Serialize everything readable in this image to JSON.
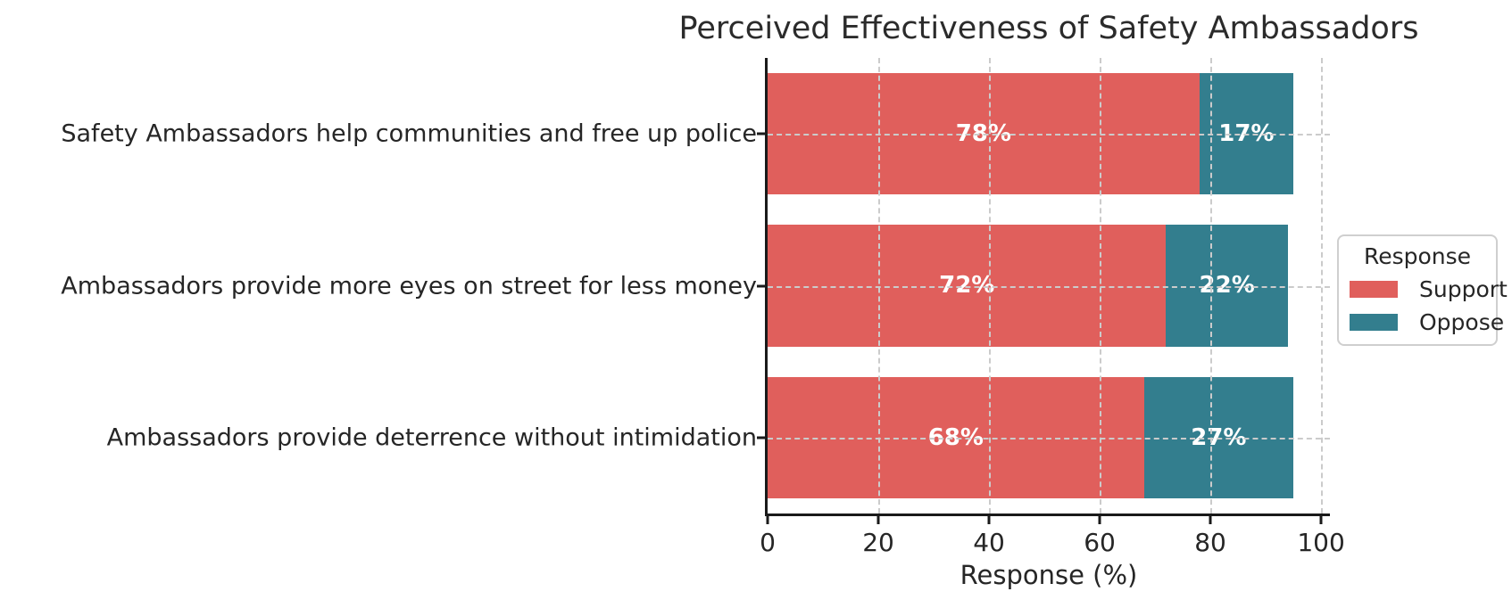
{
  "title": "Perceived Effectiveness of Safety Ambassadors",
  "xlabel": "Response (%)",
  "legend": {
    "title": "Response",
    "position": "center-right",
    "items": [
      {
        "label": "Support",
        "color": "#e05f5c"
      },
      {
        "label": "Oppose",
        "color": "#337e8e"
      }
    ]
  },
  "colors": {
    "support": "#e05f5c",
    "oppose": "#337e8e",
    "grid": "#cbcbcb",
    "spine": "#1a1a1a",
    "text": "#262626",
    "bar_label_text": "#ffffff",
    "background": "#ffffff"
  },
  "chart_data": {
    "type": "bar",
    "orientation": "horizontal",
    "stacked": true,
    "title": "Perceived Effectiveness of Safety Ambassadors",
    "xlabel": "Response (%)",
    "ylabel": "",
    "categories": [
      "Safety Ambassadors help communities and free up police",
      "Ambassadors provide more eyes on street for less money",
      "Ambassadors provide deterrence without intimidation"
    ],
    "series": [
      {
        "name": "Support",
        "color": "#e05f5c",
        "values": [
          78,
          72,
          68
        ]
      },
      {
        "name": "Oppose",
        "color": "#337e8e",
        "values": [
          17,
          22,
          27
        ]
      }
    ],
    "bar_labels": [
      [
        "78%",
        "17%"
      ],
      [
        "72%",
        "22%"
      ],
      [
        "68%",
        "27%"
      ]
    ],
    "x_ticks": [
      0,
      20,
      40,
      60,
      80,
      100
    ],
    "xlim": [
      0,
      101.6
    ],
    "bar_height_fraction": 0.8,
    "grid": {
      "style": "dashed",
      "axes": "both",
      "over_bars": true
    },
    "legend_position": "center right",
    "spines": [
      "left",
      "bottom"
    ]
  }
}
